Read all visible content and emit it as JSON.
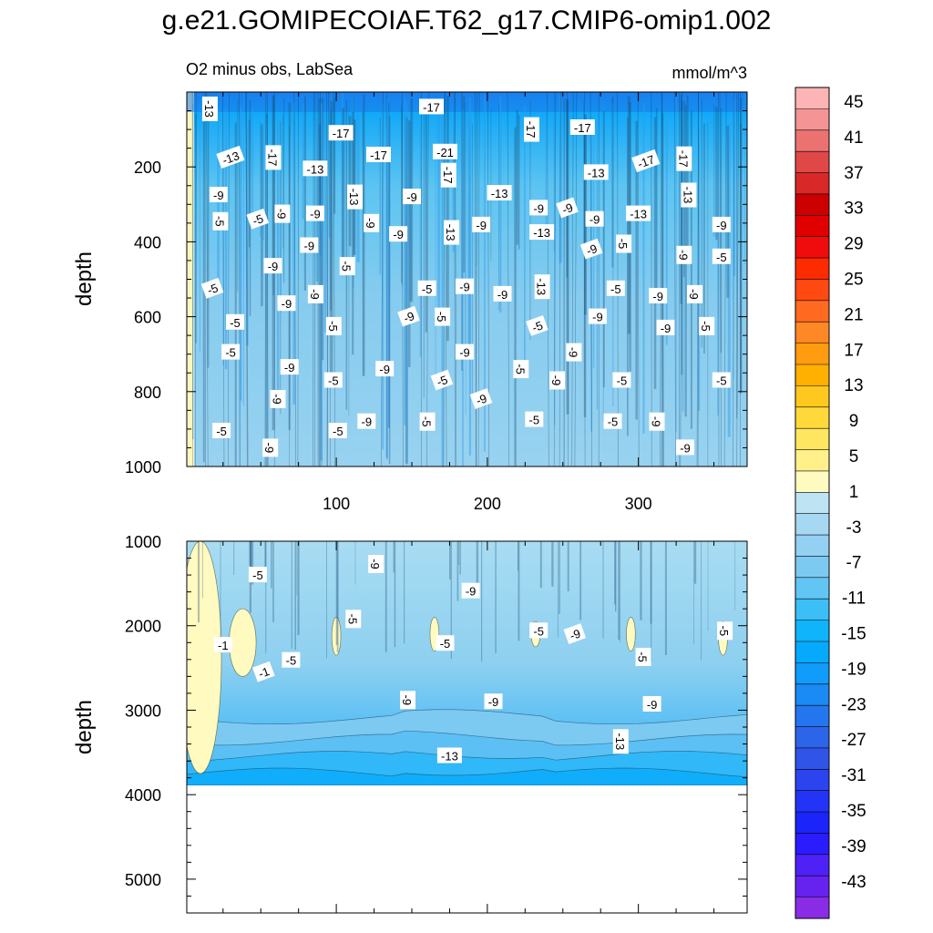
{
  "title": "g.e21.GOMIPECOIAF.T62_g17.CMIP6-omip1.002",
  "subtitle_left": "O2 minus obs, LabSea",
  "units": "mmol/m^3",
  "chart_data": [
    {
      "type": "heatmap",
      "panel": "upper",
      "title": "O2 minus obs, LabSea",
      "xlabel": "",
      "ylabel": "depth",
      "x_range": [
        1,
        372
      ],
      "y_range": [
        0,
        1000
      ],
      "y_inverted": true,
      "x_ticks": [
        100,
        200,
        300
      ],
      "y_ticks": [
        200,
        400,
        600,
        800,
        1000
      ],
      "contour_labels": [
        {
          "x": 16,
          "y": 45,
          "text": "-13"
        },
        {
          "x": 163,
          "y": 40,
          "text": "-17"
        },
        {
          "x": 103,
          "y": 110,
          "text": "-17"
        },
        {
          "x": 229,
          "y": 100,
          "text": "-17"
        },
        {
          "x": 263,
          "y": 95,
          "text": "-17"
        },
        {
          "x": 30,
          "y": 175,
          "text": "-13"
        },
        {
          "x": 58,
          "y": 175,
          "text": "-17"
        },
        {
          "x": 128,
          "y": 168,
          "text": "-17"
        },
        {
          "x": 172,
          "y": 160,
          "text": "-21"
        },
        {
          "x": 330,
          "y": 178,
          "text": "-17"
        },
        {
          "x": 305,
          "y": 185,
          "text": "-17"
        },
        {
          "x": 86,
          "y": 205,
          "text": "-13"
        },
        {
          "x": 174,
          "y": 222,
          "text": "-17"
        },
        {
          "x": 272,
          "y": 215,
          "text": "-13"
        },
        {
          "x": 22,
          "y": 275,
          "text": "-9"
        },
        {
          "x": 112,
          "y": 280,
          "text": "-13"
        },
        {
          "x": 150,
          "y": 280,
          "text": "-9"
        },
        {
          "x": 208,
          "y": 270,
          "text": "-13"
        },
        {
          "x": 333,
          "y": 275,
          "text": "-13"
        },
        {
          "x": 234,
          "y": 310,
          "text": "-9"
        },
        {
          "x": 253,
          "y": 310,
          "text": "-9"
        },
        {
          "x": 64,
          "y": 325,
          "text": "-9"
        },
        {
          "x": 86,
          "y": 325,
          "text": "-9"
        },
        {
          "x": 300,
          "y": 325,
          "text": "-13"
        },
        {
          "x": 23,
          "y": 345,
          "text": "-5"
        },
        {
          "x": 48,
          "y": 340,
          "text": "-5"
        },
        {
          "x": 271,
          "y": 340,
          "text": "-9"
        },
        {
          "x": 123,
          "y": 350,
          "text": "-9"
        },
        {
          "x": 196,
          "y": 355,
          "text": "-9"
        },
        {
          "x": 355,
          "y": 355,
          "text": "-9"
        },
        {
          "x": 176,
          "y": 375,
          "text": "-13"
        },
        {
          "x": 236,
          "y": 375,
          "text": "-13"
        },
        {
          "x": 141,
          "y": 380,
          "text": "-9"
        },
        {
          "x": 290,
          "y": 405,
          "text": "-5"
        },
        {
          "x": 82,
          "y": 410,
          "text": "-9"
        },
        {
          "x": 269,
          "y": 420,
          "text": "-9"
        },
        {
          "x": 330,
          "y": 435,
          "text": "-9"
        },
        {
          "x": 355,
          "y": 440,
          "text": "-5"
        },
        {
          "x": 58,
          "y": 465,
          "text": "-9"
        },
        {
          "x": 107,
          "y": 465,
          "text": "-5"
        },
        {
          "x": 18,
          "y": 525,
          "text": "-5"
        },
        {
          "x": 185,
          "y": 520,
          "text": "-9"
        },
        {
          "x": 236,
          "y": 520,
          "text": "-13"
        },
        {
          "x": 160,
          "y": 525,
          "text": "-5"
        },
        {
          "x": 285,
          "y": 525,
          "text": "-5"
        },
        {
          "x": 86,
          "y": 540,
          "text": "-9"
        },
        {
          "x": 210,
          "y": 540,
          "text": "-9"
        },
        {
          "x": 313,
          "y": 545,
          "text": "-9"
        },
        {
          "x": 337,
          "y": 540,
          "text": "-9"
        },
        {
          "x": 67,
          "y": 565,
          "text": "-9"
        },
        {
          "x": 148,
          "y": 600,
          "text": "-9"
        },
        {
          "x": 170,
          "y": 600,
          "text": "-5"
        },
        {
          "x": 273,
          "y": 600,
          "text": "-9"
        },
        {
          "x": 33,
          "y": 615,
          "text": "-5"
        },
        {
          "x": 98,
          "y": 625,
          "text": "-5"
        },
        {
          "x": 233,
          "y": 625,
          "text": "-5"
        },
        {
          "x": 318,
          "y": 630,
          "text": "-9"
        },
        {
          "x": 345,
          "y": 625,
          "text": "-5"
        },
        {
          "x": 30,
          "y": 695,
          "text": "-5"
        },
        {
          "x": 185,
          "y": 695,
          "text": "-9"
        },
        {
          "x": 257,
          "y": 695,
          "text": "-9"
        },
        {
          "x": 69,
          "y": 735,
          "text": "-9"
        },
        {
          "x": 132,
          "y": 740,
          "text": "-9"
        },
        {
          "x": 222,
          "y": 740,
          "text": "-5"
        },
        {
          "x": 98,
          "y": 770,
          "text": "-5"
        },
        {
          "x": 170,
          "y": 770,
          "text": "-5"
        },
        {
          "x": 246,
          "y": 770,
          "text": "-9"
        },
        {
          "x": 289,
          "y": 770,
          "text": "-5"
        },
        {
          "x": 355,
          "y": 770,
          "text": "-5"
        },
        {
          "x": 61,
          "y": 820,
          "text": "-9"
        },
        {
          "x": 196,
          "y": 820,
          "text": "-9"
        },
        {
          "x": 120,
          "y": 880,
          "text": "-9"
        },
        {
          "x": 160,
          "y": 880,
          "text": "-5"
        },
        {
          "x": 231,
          "y": 875,
          "text": "-5"
        },
        {
          "x": 283,
          "y": 880,
          "text": "-5"
        },
        {
          "x": 312,
          "y": 880,
          "text": "-9"
        },
        {
          "x": 24,
          "y": 905,
          "text": "-5"
        },
        {
          "x": 101,
          "y": 905,
          "text": "-5"
        },
        {
          "x": 56,
          "y": 950,
          "text": "-9"
        },
        {
          "x": 331,
          "y": 950,
          "text": "-9"
        }
      ]
    },
    {
      "type": "heatmap",
      "panel": "lower",
      "xlabel": "",
      "ylabel": "depth",
      "x_range": [
        1,
        372
      ],
      "y_range": [
        1000,
        5400
      ],
      "y_inverted": true,
      "data_bottom_depth": 3880,
      "y_ticks": [
        1000,
        2000,
        3000,
        4000,
        5000
      ],
      "contour_labels": [
        {
          "x": 126,
          "y": 1270,
          "text": "-9"
        },
        {
          "x": 48,
          "y": 1400,
          "text": "-5"
        },
        {
          "x": 189,
          "y": 1590,
          "text": "-9"
        },
        {
          "x": 111,
          "y": 1920,
          "text": "-5"
        },
        {
          "x": 234,
          "y": 2060,
          "text": "-5"
        },
        {
          "x": 258,
          "y": 2100,
          "text": "-9"
        },
        {
          "x": 357,
          "y": 2060,
          "text": "-5"
        },
        {
          "x": 25,
          "y": 2230,
          "text": "-1"
        },
        {
          "x": 172,
          "y": 2210,
          "text": "-5"
        },
        {
          "x": 303,
          "y": 2370,
          "text": "-5"
        },
        {
          "x": 52,
          "y": 2550,
          "text": "-1"
        },
        {
          "x": 70,
          "y": 2410,
          "text": "-5"
        },
        {
          "x": 147,
          "y": 2880,
          "text": "-9"
        },
        {
          "x": 204,
          "y": 2900,
          "text": "-9"
        },
        {
          "x": 309,
          "y": 2930,
          "text": "-9"
        },
        {
          "x": 288,
          "y": 3370,
          "text": "-13"
        },
        {
          "x": 175,
          "y": 3540,
          "text": "-13"
        }
      ]
    }
  ],
  "colorbar": {
    "labels": [
      "45",
      "41",
      "37",
      "33",
      "29",
      "25",
      "21",
      "17",
      "13",
      "9",
      "5",
      "1",
      "-3",
      "-7",
      "-11",
      "-15",
      "-19",
      "-23",
      "-27",
      "-31",
      "-35",
      "-39",
      "-43"
    ],
    "colors": [
      "#fcb4b4",
      "#f49494",
      "#ec7272",
      "#e04848",
      "#d82828",
      "#cc0000",
      "#e00000",
      "#f00c0c",
      "#fc2c00",
      "#fe4a10",
      "#ff6a20",
      "#ff8826",
      "#ff9c10",
      "#ffb000",
      "#ffc81e",
      "#ffd83c",
      "#ffe660",
      "#fff08c",
      "#fffac0",
      "#bee4f4",
      "#a6d8f2",
      "#94d0f2",
      "#7ccaf2",
      "#62c6f4",
      "#3cbef6",
      "#10b4fa",
      "#06aafc",
      "#109cfa",
      "#1a8af4",
      "#2476ee",
      "#2c64ea",
      "#3054e8",
      "#2c44ee",
      "#2434f6",
      "#1c24fc",
      "#2a1cff",
      "#4e22f6",
      "#6622ee",
      "#8a2ce6"
    ]
  }
}
